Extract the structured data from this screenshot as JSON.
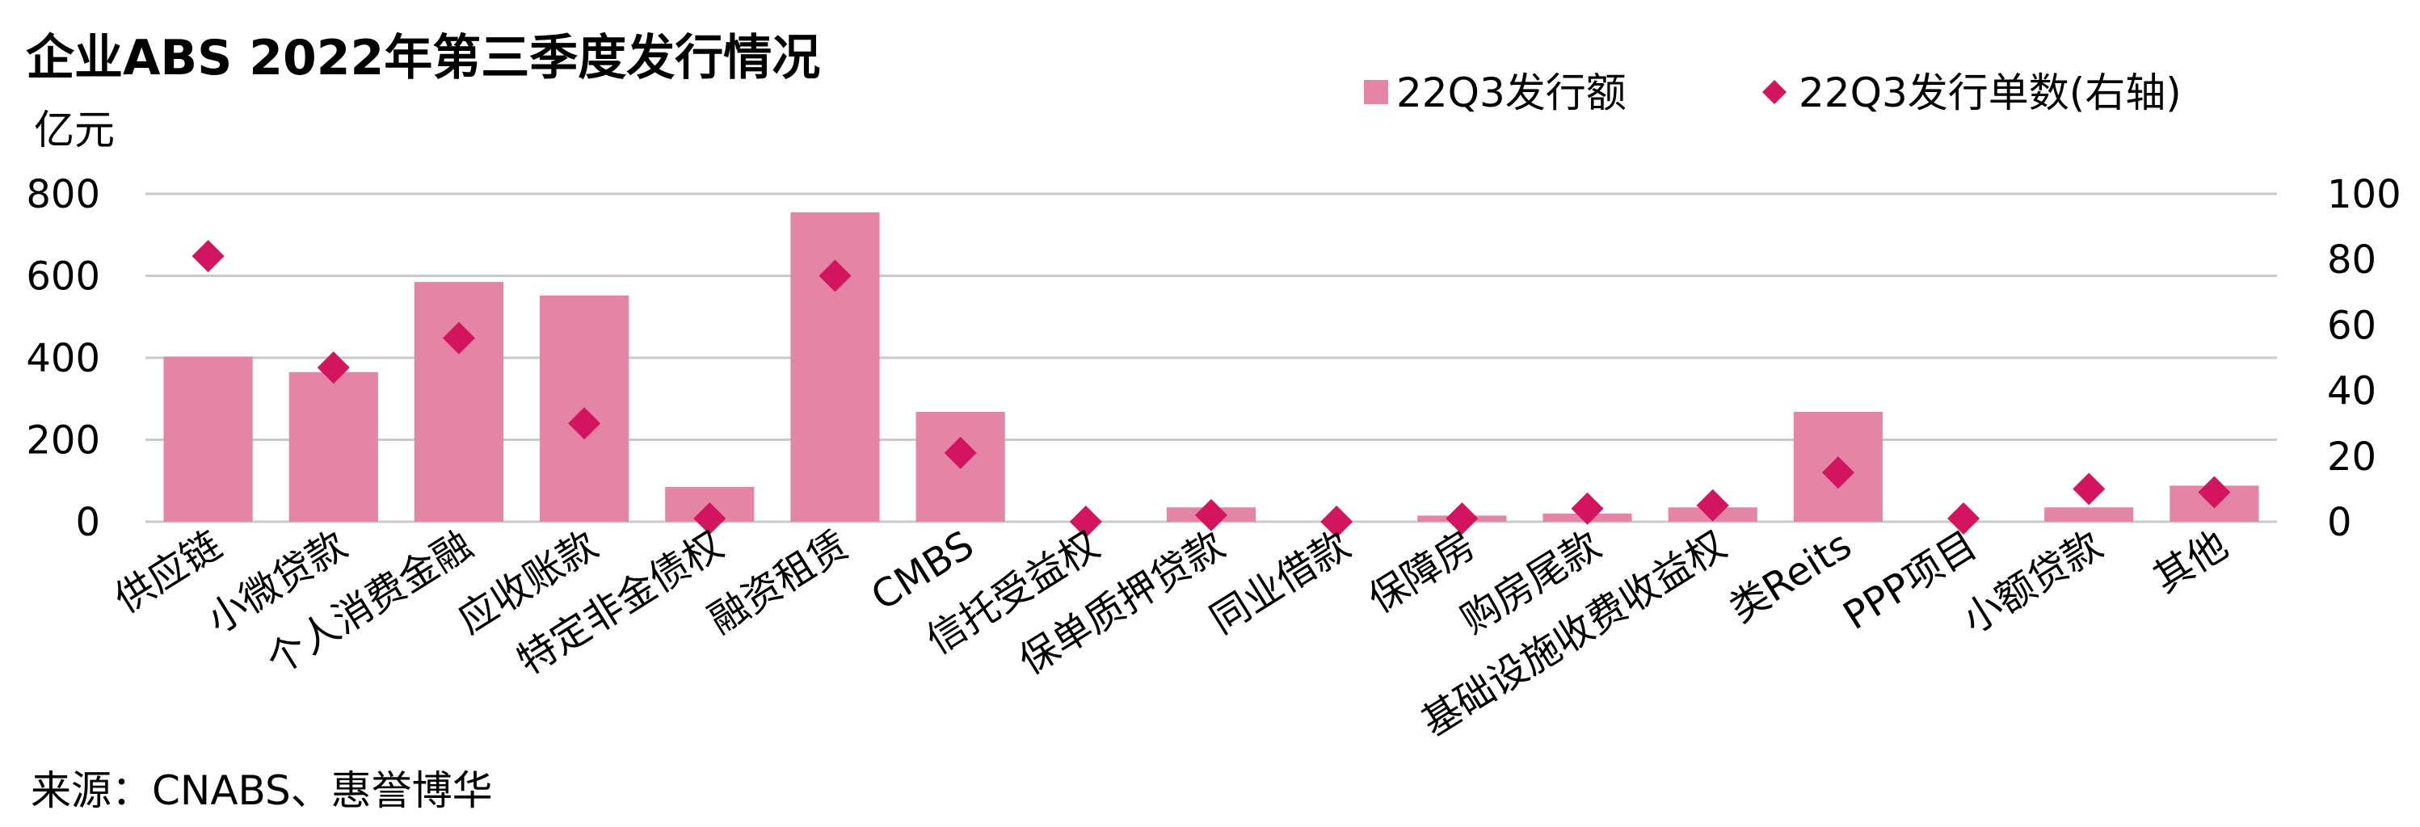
{
  "chart_data": {
    "type": "bar",
    "title": "企业ABS 2022年第三季度发行情况",
    "y_left_unit": "亿元",
    "ylim_left": [
      0,
      800
    ],
    "yticks_left": [
      "800",
      "600",
      "400",
      "200",
      "0"
    ],
    "ylim_right": [
      0,
      100
    ],
    "yticks_right": [
      "100",
      "80",
      "60",
      "40",
      "20",
      "0"
    ],
    "grid": true,
    "legend_position": "top-right",
    "categories": [
      "供应链",
      "小微贷款",
      "个人消费金融",
      "应收账款",
      "特定非金债权",
      "融资租赁",
      "CMBS",
      "信托受益权",
      "保单质押贷款",
      "同业借款",
      "保障房",
      "购房尾款",
      "基础设施收费收益权",
      "类Reits",
      "PPP项目",
      "小额贷款",
      "其他"
    ],
    "series": [
      {
        "name": "22Q3发行额",
        "kind": "bar",
        "axis": "left",
        "color": "#e585a6",
        "values": [
          403,
          365,
          585,
          552,
          85,
          755,
          268,
          0,
          35,
          0,
          15,
          20,
          35,
          268,
          0,
          35,
          88
        ]
      },
      {
        "name": "22Q3发行单数(右轴)",
        "kind": "marker",
        "axis": "right",
        "color": "#d3145f",
        "values": [
          81,
          47,
          56,
          30,
          1,
          75,
          21,
          0,
          2,
          0,
          1,
          4,
          5,
          15,
          1,
          10,
          9
        ]
      }
    ]
  },
  "source": "来源：CNABS、惠誉博华"
}
